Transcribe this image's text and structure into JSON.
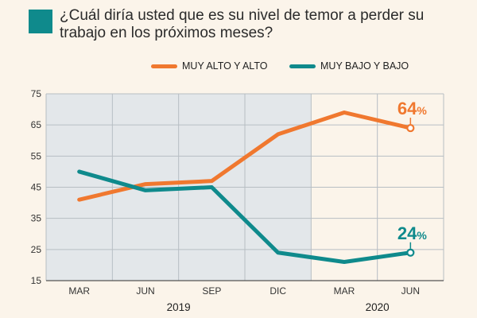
{
  "title": "¿Cuál diría usted que es su nivel de temor a perder su trabajo en los próximos meses?",
  "chart_data": {
    "type": "line",
    "title": "¿Cuál diría usted que es su nivel de temor a perder su trabajo en los próximos meses?",
    "categories": [
      "MAR",
      "JUN",
      "SEP",
      "DIC",
      "MAR",
      "JUN"
    ],
    "years": [
      {
        "label": "2019",
        "from": 0,
        "to": 3
      },
      {
        "label": "2020",
        "from": 4,
        "to": 5
      }
    ],
    "series": [
      {
        "name": "MUY ALTO Y ALTO",
        "color": "#f0782f",
        "values": [
          41,
          46,
          47,
          62,
          69,
          64
        ],
        "final_label": "64%"
      },
      {
        "name": "MUY BAJO Y BAJO",
        "color": "#0f8a8c",
        "values": [
          50,
          44,
          45,
          24,
          21,
          24
        ],
        "final_label": "24%"
      }
    ],
    "ylim": [
      15,
      75
    ],
    "yticks": [
      15,
      25,
      35,
      45,
      55,
      65,
      75
    ],
    "xlabel": "",
    "ylabel": "",
    "grid": true,
    "legend": "top-right"
  }
}
